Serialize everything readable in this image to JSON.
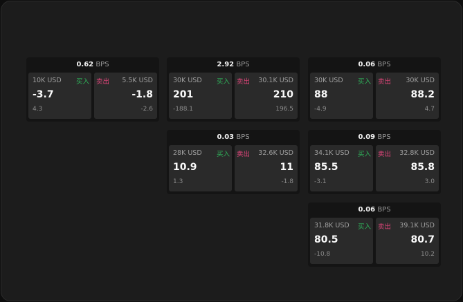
{
  "labels": {
    "bps_unit": "BPS",
    "buy": "买入",
    "sell": "卖出"
  },
  "colors": {
    "buy": "#2fb35a",
    "sell": "#e0457a"
  },
  "cards": [
    {
      "spread": "0.62",
      "bid_size": "10K USD",
      "bid": "-3.7",
      "bid_chg": "4.3",
      "ask_size": "5.5K USD",
      "ask": "-1.8",
      "ask_chg": "-2.6"
    },
    {
      "spread": "2.92",
      "bid_size": "30K USD",
      "bid": "201",
      "bid_chg": "-188.1",
      "ask_size": "30.1K USD",
      "ask": "210",
      "ask_chg": "196.5"
    },
    {
      "spread": "0.06",
      "bid_size": "30K USD",
      "bid": "88",
      "bid_chg": "-4.9",
      "ask_size": "30K USD",
      "ask": "88.2",
      "ask_chg": "4.7"
    },
    {
      "spread": "0.03",
      "bid_size": "28K USD",
      "bid": "10.9",
      "bid_chg": "1.3",
      "ask_size": "32.6K USD",
      "ask": "11",
      "ask_chg": "-1.8"
    },
    {
      "spread": "0.09",
      "bid_size": "34.1K USD",
      "bid": "85.5",
      "bid_chg": "-3.1",
      "ask_size": "32.8K USD",
      "ask": "85.8",
      "ask_chg": "3.0"
    },
    {
      "spread": "0.06",
      "bid_size": "31.8K USD",
      "bid": "80.5",
      "bid_chg": "-10.8",
      "ask_size": "39.1K USD",
      "ask": "80.7",
      "ask_chg": "10.2"
    }
  ]
}
